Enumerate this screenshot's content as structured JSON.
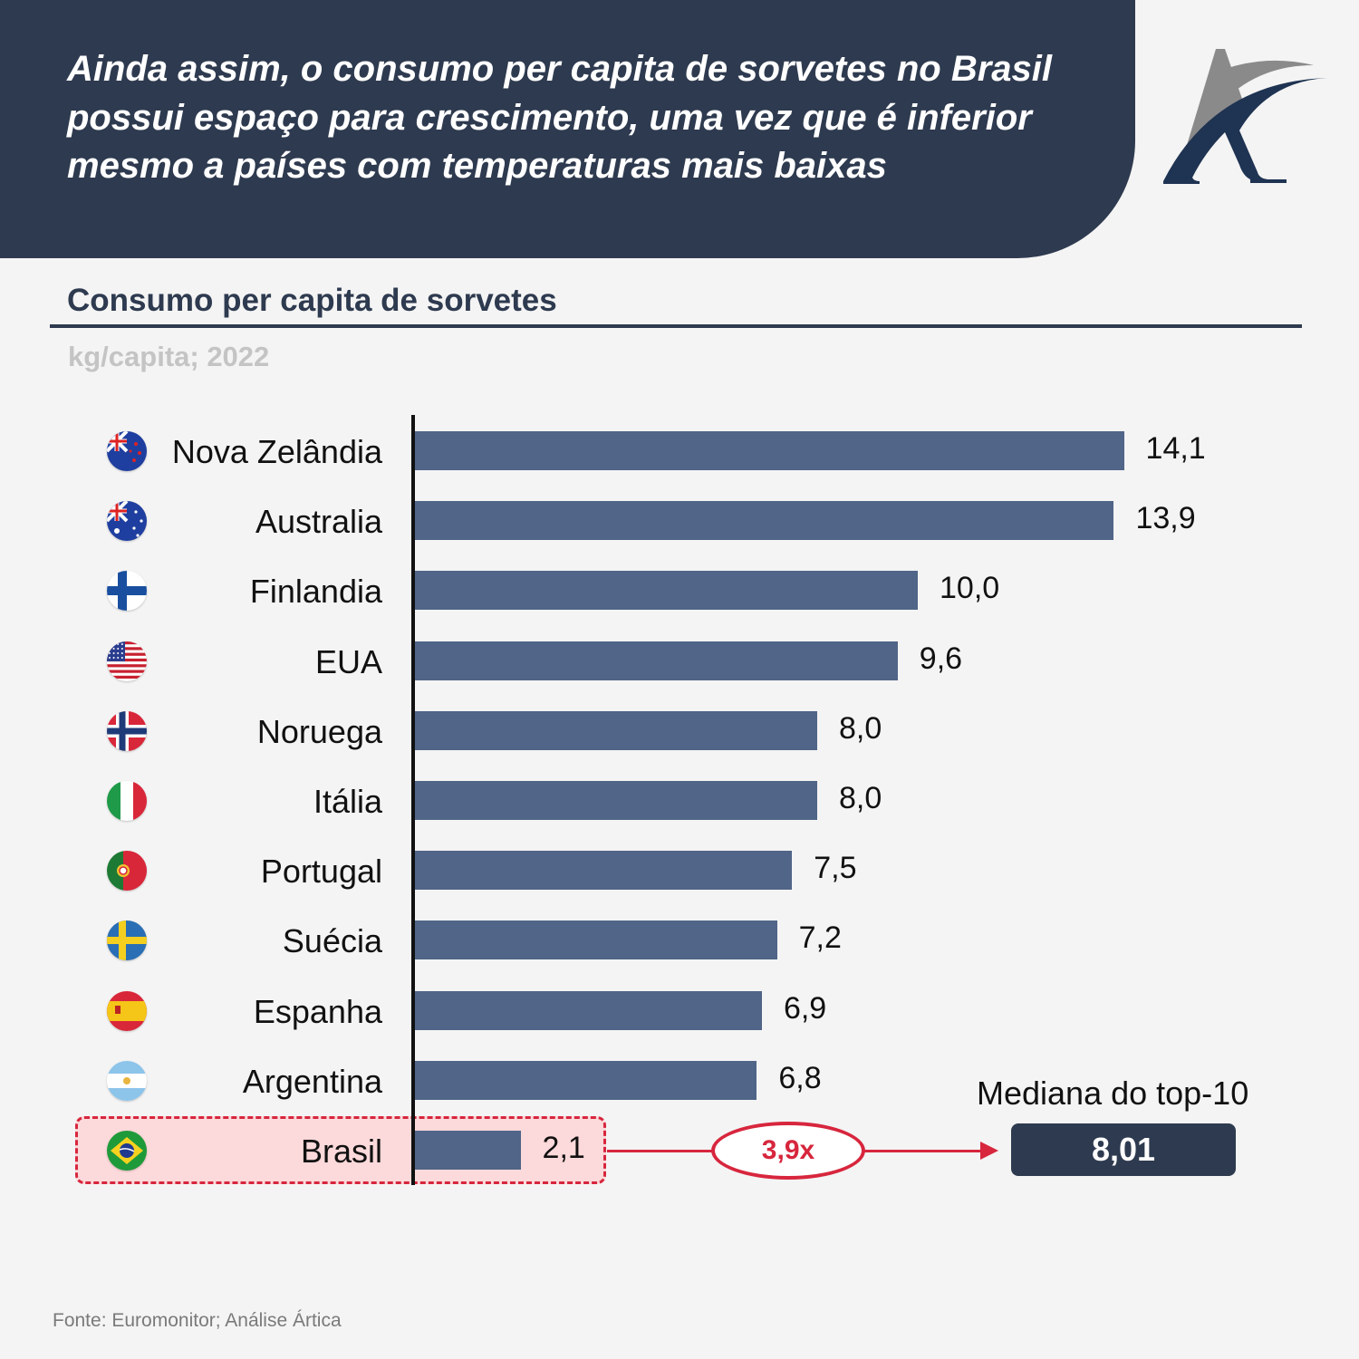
{
  "header": {
    "title": "Ainda assim, o consumo per capita de sorvetes no Brasil possui espaço para crescimento, uma vez que é inferior mesmo a países com temperaturas mais baixas",
    "logo": "artica-logo"
  },
  "colors": {
    "header_bg": "#2e3a4f",
    "bar": "#506587",
    "highlight_red": "#d7263d",
    "highlight_fill": "#fcd9da",
    "subtitle_gray": "#c4c4c4"
  },
  "chart_data": {
    "type": "bar",
    "orientation": "horizontal",
    "title": "Consumo per capita de sorvetes",
    "subtitle": "kg/capita; 2022",
    "xlabel": "",
    "ylabel": "",
    "xlim": [
      0,
      14.1
    ],
    "grid": false,
    "categories": [
      "Nova Zelândia",
      "Australia",
      "Finlandia",
      "EUA",
      "Noruega",
      "Itália",
      "Portugal",
      "Suécia",
      "Espanha",
      "Argentina",
      "Brasil"
    ],
    "values": [
      14.1,
      13.9,
      10.0,
      9.6,
      8.0,
      8.0,
      7.5,
      7.2,
      6.9,
      6.8,
      2.1
    ],
    "labels": [
      "14,1",
      "13,9",
      "10,0",
      "9,6",
      "8,0",
      "8,0",
      "7,5",
      "7,2",
      "6,9",
      "6,8",
      "2,1"
    ],
    "flags": [
      "nz-flag-icon",
      "au-flag-icon",
      "fi-flag-icon",
      "us-flag-icon",
      "no-flag-icon",
      "it-flag-icon",
      "pt-flag-icon",
      "se-flag-icon",
      "es-flag-icon",
      "ar-flag-icon",
      "br-flag-icon"
    ],
    "highlighted": "Brasil",
    "annotations": {
      "ratio": "3,9x",
      "median_label": "Mediana do top-10",
      "median_value": "8,01"
    }
  },
  "footer": {
    "source": "Fonte: Euromonitor; Análise Ártica"
  }
}
